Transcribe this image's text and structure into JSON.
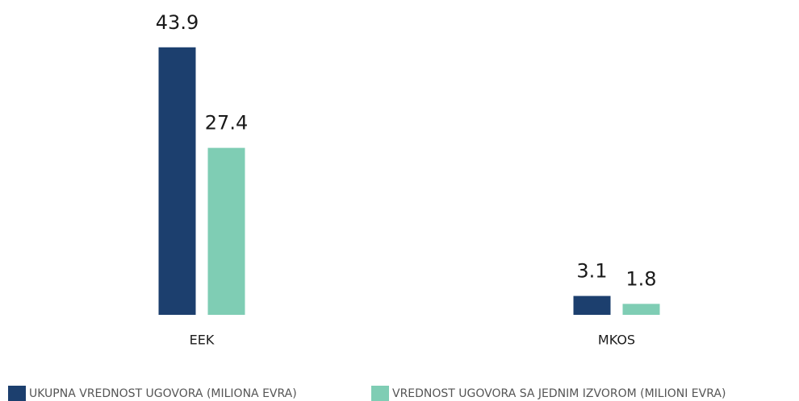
{
  "chart_data": {
    "type": "bar",
    "categories": [
      "EEK",
      "MKOS"
    ],
    "series": [
      {
        "name": "UKUPNA VREDNOST UGOVORA (MILIONA EVRA)",
        "color": "#1c3f6e",
        "values": [
          43.9,
          3.1
        ]
      },
      {
        "name": "VREDNOST UGOVORA SA JEDNIM IZVOROM (MILIONI EVRA)",
        "color": "#7fcdb4",
        "values": [
          27.4,
          1.8
        ]
      }
    ],
    "ylim": [
      0,
      44
    ]
  }
}
